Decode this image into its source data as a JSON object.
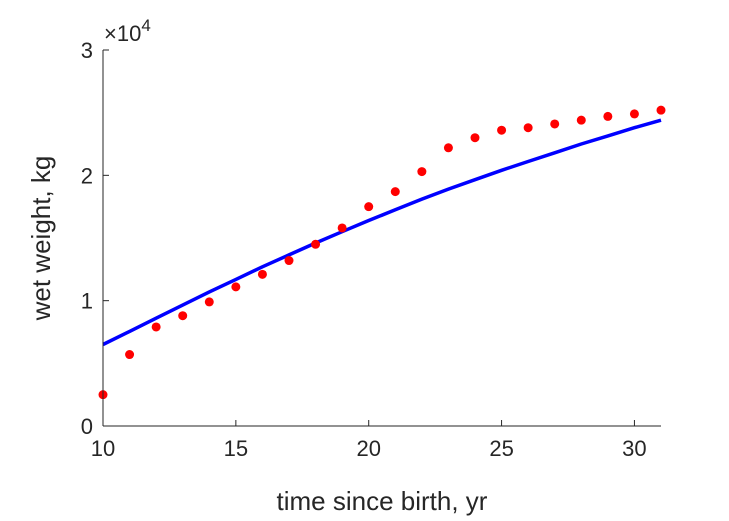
{
  "chart_data": {
    "type": "scatter",
    "title": "",
    "xlabel": "time since birth, yr",
    "ylabel": "wet weight, kg",
    "xlim": [
      10,
      31
    ],
    "ylim": [
      0,
      30000
    ],
    "xticks": [
      10,
      15,
      20,
      25,
      30
    ],
    "yticks": [
      0,
      10000,
      20000,
      30000
    ],
    "ytick_labels": [
      "0",
      "1",
      "2",
      "3"
    ],
    "y_multiplier": {
      "base": "×10",
      "exponent": "4"
    },
    "grid": false,
    "legend": "none",
    "series": [
      {
        "kind": "scatter",
        "color": "#ff0000",
        "x": [
          10,
          11,
          12,
          13,
          14,
          15,
          16,
          17,
          18,
          19,
          20,
          21,
          22,
          23,
          24,
          25,
          26,
          27,
          28,
          29,
          30,
          31
        ],
        "y": [
          2500,
          5700,
          7900,
          8800,
          9900,
          11100,
          12100,
          13200,
          14500,
          15800,
          17500,
          18700,
          20300,
          22200,
          23000,
          23600,
          23800,
          24100,
          24400,
          24700,
          24900,
          25200
        ]
      },
      {
        "kind": "line",
        "color": "#0000ff",
        "x": [
          10,
          11,
          12,
          13,
          14,
          15,
          16,
          17,
          18,
          19,
          20,
          21,
          22,
          23,
          24,
          25,
          26,
          27,
          28,
          29,
          30,
          31
        ],
        "y": [
          6500,
          7550,
          8600,
          9650,
          10700,
          11700,
          12700,
          13650,
          14600,
          15500,
          16400,
          17250,
          18100,
          18900,
          19650,
          20400,
          21100,
          21800,
          22500,
          23150,
          23800,
          24400
        ]
      }
    ]
  }
}
